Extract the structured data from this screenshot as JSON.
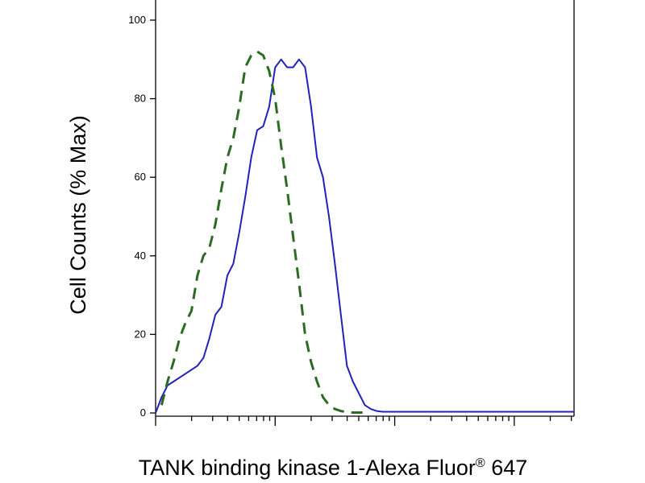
{
  "chart_data": {
    "type": "line",
    "x_scale": "log",
    "xlabel": "TANK binding kinase 1-Alexa Fluor",
    "xlabel_superscript": "®",
    "xlabel_suffix": " 647",
    "ylabel": "Cell Counts (% Max)",
    "ylim": [
      0,
      100
    ],
    "y_ticks": [
      0,
      20,
      40,
      60,
      80,
      100
    ],
    "y_tick_labels": [
      "0",
      "20",
      "40",
      "60",
      "80",
      "100"
    ],
    "xlim_decades": [
      0,
      3.5
    ],
    "grid": false,
    "legend": "none",
    "series": [
      {
        "style": "solid",
        "color": "#2222bb",
        "x": [
          0.0,
          0.05,
          0.1,
          0.15,
          0.2,
          0.25,
          0.3,
          0.35,
          0.4,
          0.45,
          0.5,
          0.55,
          0.6,
          0.65,
          0.7,
          0.75,
          0.8,
          0.85,
          0.9,
          0.95,
          1.0,
          1.05,
          1.1,
          1.15,
          1.2,
          1.25,
          1.3,
          1.35,
          1.4,
          1.45,
          1.5,
          1.55,
          1.6,
          1.65,
          1.7,
          1.75,
          1.8,
          1.85,
          1.9,
          1.95,
          2.0,
          2.1,
          2.2,
          2.3,
          2.4,
          2.5,
          2.7,
          2.9,
          3.1,
          3.3,
          3.5
        ],
        "y": [
          0,
          4,
          7,
          8,
          9,
          10,
          11,
          12,
          14,
          19,
          25,
          27,
          35,
          38,
          46,
          55,
          65,
          72,
          73,
          78,
          88,
          90,
          88,
          88,
          90,
          88,
          78,
          65,
          60,
          50,
          38,
          25,
          12,
          8,
          5,
          2,
          1,
          0.5,
          0.3,
          0.3,
          0.3,
          0.3,
          0.3,
          0.3,
          0.3,
          0.3,
          0.3,
          0.3,
          0.3,
          0.3,
          0.3
        ]
      },
      {
        "style": "dashed",
        "color": "#2b6b22",
        "x": [
          0.05,
          0.1,
          0.15,
          0.2,
          0.25,
          0.3,
          0.35,
          0.4,
          0.45,
          0.5,
          0.55,
          0.6,
          0.65,
          0.7,
          0.75,
          0.8,
          0.85,
          0.9,
          0.95,
          1.0,
          1.05,
          1.1,
          1.15,
          1.2,
          1.25,
          1.3,
          1.35,
          1.4,
          1.45,
          1.5,
          1.55,
          1.6,
          1.65,
          1.7,
          1.75
        ],
        "y": [
          2,
          8,
          13,
          19,
          23,
          26,
          35,
          40,
          42,
          48,
          57,
          65,
          70,
          78,
          88,
          91,
          92,
          91,
          87,
          80,
          68,
          57,
          45,
          33,
          20,
          13,
          8,
          4,
          2,
          1,
          0.5,
          0.2,
          0.1,
          0.1,
          0.1
        ]
      }
    ]
  }
}
